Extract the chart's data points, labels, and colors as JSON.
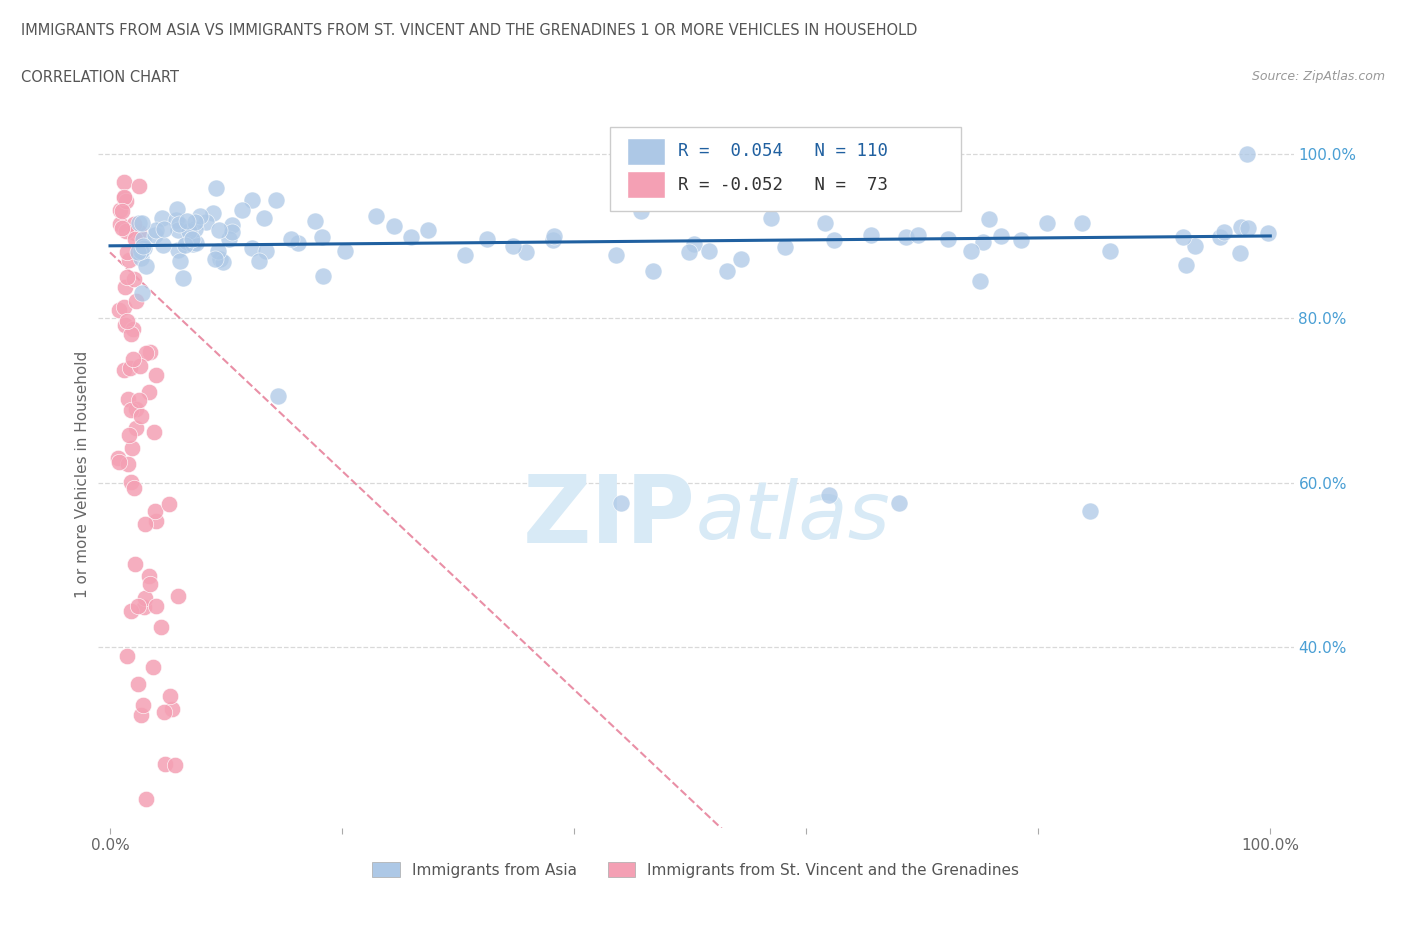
{
  "title_line1": "IMMIGRANTS FROM ASIA VS IMMIGRANTS FROM ST. VINCENT AND THE GRENADINES 1 OR MORE VEHICLES IN HOUSEHOLD",
  "title_line2": "CORRELATION CHART",
  "source_text": "Source: ZipAtlas.com",
  "ylabel": "1 or more Vehicles in Household",
  "legend_label1": "Immigrants from Asia",
  "legend_label2": "Immigrants from St. Vincent and the Grenadines",
  "R1": 0.054,
  "N1": 110,
  "R2": -0.052,
  "N2": 73,
  "color_asia": "#adc8e6",
  "color_stvincent": "#f4a0b4",
  "trendline_color_asia": "#2060a0",
  "trendline_color_sv": "#e06080",
  "watermark_color": "#d8eaf6",
  "background_color": "#ffffff",
  "right_tick_color": "#4a9fd4",
  "grid_color": "#d0d0d0"
}
